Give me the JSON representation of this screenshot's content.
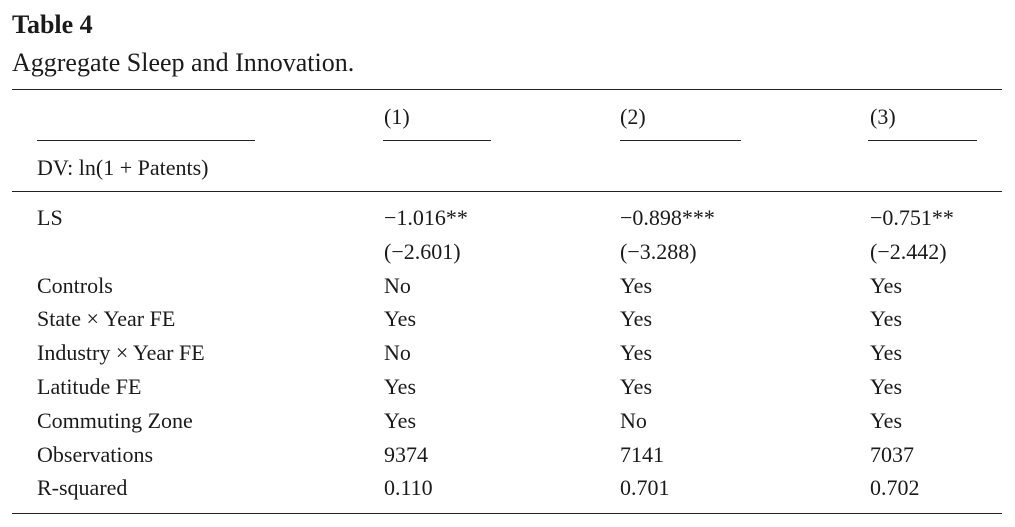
{
  "header": {
    "title": "Table 4",
    "subtitle": "Aggregate Sleep and Innovation."
  },
  "table": {
    "columns": [
      "(1)",
      "(2)",
      "(3)"
    ],
    "dependent_variable": "DV: ln(1 + Patents)",
    "coefficient_row": {
      "label": "LS",
      "estimates": [
        "−1.016**",
        "−0.898***",
        "−0.751**"
      ],
      "t_stats": [
        "(−2.601)",
        "(−3.288)",
        "(−2.442)"
      ]
    },
    "rows": [
      {
        "label": "Controls",
        "cells": [
          "No",
          "Yes",
          "Yes"
        ]
      },
      {
        "label": "State × Year FE",
        "cells": [
          "Yes",
          "Yes",
          "Yes"
        ]
      },
      {
        "label": "Industry × Year FE",
        "cells": [
          "No",
          "Yes",
          "Yes"
        ]
      },
      {
        "label": "Latitude FE",
        "cells": [
          "Yes",
          "Yes",
          "Yes"
        ]
      },
      {
        "label": "Commuting Zone",
        "cells": [
          "Yes",
          "No",
          "Yes"
        ]
      },
      {
        "label": "Observations",
        "cells": [
          "9374",
          "7141",
          "7037"
        ]
      },
      {
        "label": "R-squared",
        "cells": [
          "0.110",
          "0.701",
          "0.702"
        ]
      }
    ]
  }
}
